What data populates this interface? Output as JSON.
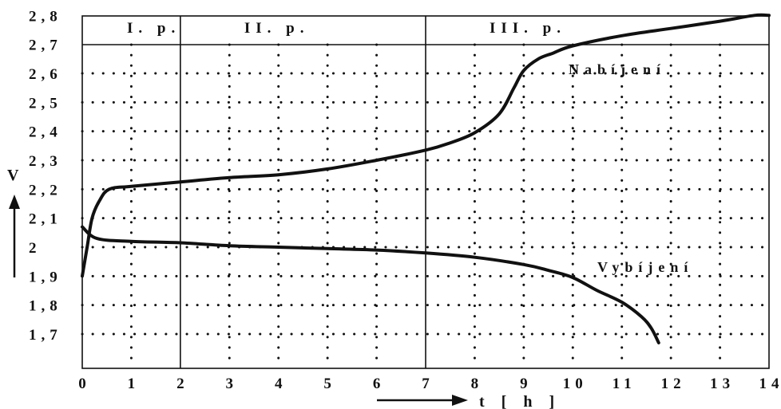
{
  "chart_data": {
    "type": "line",
    "xlabel": "t [ h ]",
    "ylabel": "V",
    "xlim": [
      0,
      14
    ],
    "ylim": [
      1.65,
      2.8
    ],
    "x_ticks": [
      "0",
      "1",
      "2",
      "3",
      "4",
      "5",
      "6",
      "7",
      "8",
      "9",
      "10",
      "11",
      "12",
      "13",
      "14"
    ],
    "y_ticks": [
      "1,7",
      "1,8",
      "1,9",
      "2",
      "2,1",
      "2,2",
      "2,3",
      "2,4",
      "2,5",
      "2,6",
      "2,7",
      "2,8"
    ],
    "grid": "dotted",
    "periods": [
      {
        "label": "I. p.",
        "from": 0,
        "to": 2
      },
      {
        "label": "II. p.",
        "from": 2,
        "to": 7
      },
      {
        "label": "III. p.",
        "from": 7,
        "to": 14
      }
    ],
    "series": [
      {
        "name": "Nabíjení",
        "points": [
          [
            0,
            1.9
          ],
          [
            0.1,
            2.0
          ],
          [
            0.2,
            2.1
          ],
          [
            0.35,
            2.16
          ],
          [
            0.55,
            2.2
          ],
          [
            1,
            2.21
          ],
          [
            2,
            2.225
          ],
          [
            3,
            2.24
          ],
          [
            4,
            2.25
          ],
          [
            5,
            2.27
          ],
          [
            6,
            2.3
          ],
          [
            7,
            2.335
          ],
          [
            7.5,
            2.36
          ],
          [
            8,
            2.395
          ],
          [
            8.5,
            2.46
          ],
          [
            8.8,
            2.55
          ],
          [
            9,
            2.61
          ],
          [
            9.3,
            2.65
          ],
          [
            9.6,
            2.67
          ],
          [
            10,
            2.695
          ],
          [
            11,
            2.73
          ],
          [
            12,
            2.755
          ],
          [
            13,
            2.78
          ],
          [
            13.7,
            2.8
          ],
          [
            14,
            2.8
          ]
        ]
      },
      {
        "name": "Vybíjení",
        "points": [
          [
            0,
            2.07
          ],
          [
            0.3,
            2.03
          ],
          [
            1,
            2.02
          ],
          [
            2,
            2.015
          ],
          [
            3,
            2.005
          ],
          [
            4,
            2.0
          ],
          [
            5,
            1.995
          ],
          [
            6,
            1.99
          ],
          [
            7,
            1.98
          ],
          [
            8,
            1.965
          ],
          [
            9,
            1.94
          ],
          [
            9.5,
            1.92
          ],
          [
            10,
            1.895
          ],
          [
            10.5,
            1.85
          ],
          [
            11,
            1.81
          ],
          [
            11.4,
            1.76
          ],
          [
            11.6,
            1.72
          ],
          [
            11.75,
            1.67
          ]
        ]
      }
    ]
  }
}
